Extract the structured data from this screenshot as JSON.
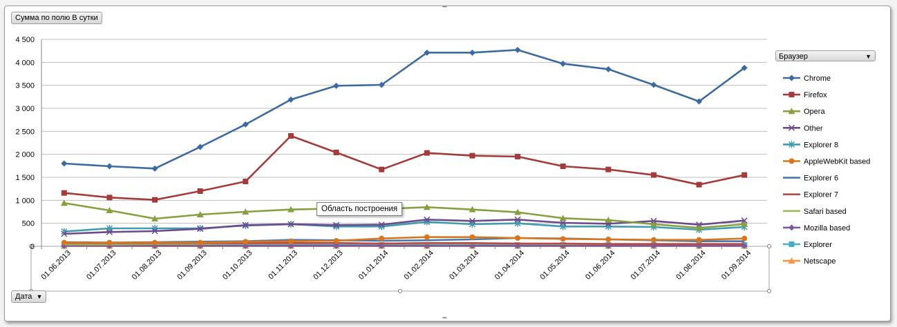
{
  "pivot": {
    "value_field": "Сумма по полю В сутки",
    "row_field": "Дата",
    "legend_field": "Браузер",
    "tooltip": "Область построения"
  },
  "chart_data": {
    "type": "line",
    "ylim": [
      0,
      4500
    ],
    "y_ticks": [
      "0",
      "500",
      "1 000",
      "1 500",
      "2 000",
      "2 500",
      "3 000",
      "3 500",
      "4 000",
      "4 500"
    ],
    "grid": true,
    "legend_position": "right",
    "categories": [
      "01.06.2013",
      "01.07.2013",
      "01.08.2013",
      "01.09.2013",
      "01.10.2013",
      "01.11.2013",
      "01.12.2013",
      "01.01.2014",
      "01.02.2014",
      "01.03.2014",
      "01.04.2014",
      "01.05.2014",
      "01.06.2014",
      "01.07.2014",
      "01.08.2014",
      "01.09.2014"
    ],
    "series": [
      {
        "name": "Chrome",
        "color": "#3c6aa0",
        "marker": "diamond",
        "values": [
          1800,
          1740,
          1690,
          2160,
          2650,
          3190,
          3490,
          3510,
          4210,
          4210,
          4270,
          3970,
          3850,
          3510,
          3150,
          3880
        ]
      },
      {
        "name": "Firefox",
        "color": "#a33b3a",
        "marker": "square",
        "values": [
          1160,
          1060,
          1010,
          1200,
          1410,
          2400,
          2040,
          1670,
          2030,
          1970,
          1950,
          1740,
          1670,
          1550,
          1340,
          1550
        ]
      },
      {
        "name": "Opera",
        "color": "#86a040",
        "marker": "triangle",
        "values": [
          940,
          780,
          600,
          690,
          750,
          800,
          820,
          810,
          850,
          800,
          740,
          610,
          570,
          480,
          400,
          480
        ]
      },
      {
        "name": "Other",
        "color": "#6b4a8c",
        "marker": "x",
        "values": [
          270,
          310,
          330,
          380,
          460,
          480,
          460,
          470,
          580,
          550,
          580,
          510,
          490,
          550,
          470,
          560
        ]
      },
      {
        "name": "Explorer 8",
        "color": "#3f9bb0",
        "marker": "star",
        "values": [
          320,
          390,
          390,
          390,
          450,
          480,
          430,
          430,
          530,
          480,
          500,
          430,
          430,
          420,
          360,
          420
        ]
      },
      {
        "name": "AppleWebKit based",
        "color": "#d8761f",
        "marker": "circle",
        "values": [
          80,
          80,
          80,
          80,
          100,
          110,
          120,
          170,
          200,
          200,
          180,
          160,
          150,
          140,
          140,
          170
        ]
      },
      {
        "name": "Explorer 6",
        "color": "#4678b0",
        "marker": "none",
        "values": [
          90,
          80,
          90,
          100,
          110,
          140,
          130,
          120,
          130,
          150,
          180,
          170,
          150,
          130,
          110,
          110
        ]
      },
      {
        "name": "Explorer 7",
        "color": "#b84a48",
        "marker": "none",
        "values": [
          70,
          70,
          70,
          70,
          70,
          70,
          70,
          60,
          70,
          70,
          60,
          60,
          50,
          50,
          50,
          50
        ]
      },
      {
        "name": "Safari based",
        "color": "#9bbb59",
        "marker": "none",
        "values": [
          40,
          40,
          50,
          50,
          60,
          60,
          70,
          60,
          60,
          60,
          60,
          50,
          50,
          50,
          50,
          50
        ]
      },
      {
        "name": "Mozilla based",
        "color": "#7c5a9c",
        "marker": "diamond",
        "values": [
          10,
          10,
          10,
          10,
          10,
          10,
          10,
          10,
          10,
          10,
          10,
          10,
          10,
          10,
          10,
          10
        ]
      },
      {
        "name": "Explorer",
        "color": "#4aacc6",
        "marker": "square",
        "values": [
          30,
          30,
          30,
          30,
          30,
          30,
          30,
          30,
          30,
          30,
          30,
          30,
          30,
          30,
          30,
          30
        ]
      },
      {
        "name": "Netscape",
        "color": "#f79646",
        "marker": "triangle",
        "values": [
          5,
          5,
          5,
          5,
          5,
          5,
          5,
          5,
          5,
          5,
          5,
          5,
          5,
          5,
          5,
          5
        ]
      }
    ]
  }
}
